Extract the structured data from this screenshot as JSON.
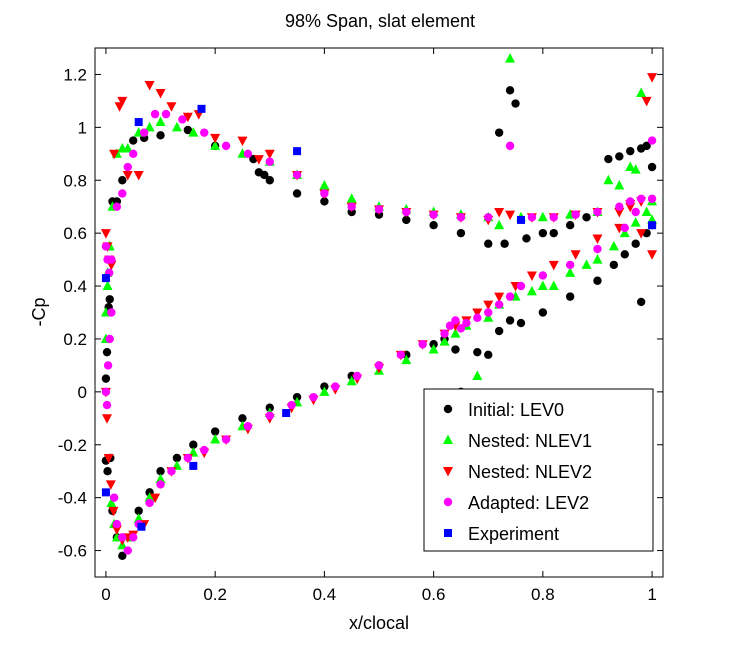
{
  "chart_data": {
    "type": "scatter",
    "title": "98% Span, slat element",
    "xlabel": "x/clocal",
    "ylabel": "-Cp",
    "xlim": [
      -0.02,
      1.02
    ],
    "ylim": [
      -0.7,
      1.3
    ],
    "xticks": [
      0,
      0.2,
      0.4,
      0.6,
      0.8,
      1
    ],
    "xtick_labels": [
      "0",
      "0.2",
      "0.4",
      "0.6",
      "0.8",
      "1"
    ],
    "yticks": [
      -0.6,
      -0.4,
      -0.2,
      0,
      0.2,
      0.4,
      0.6,
      0.8,
      1,
      1.2
    ],
    "ytick_labels": [
      "-0.6",
      "-0.4",
      "-0.2",
      "0",
      "0.2",
      "0.4",
      "0.6",
      "0.8",
      "1",
      "1.2"
    ],
    "grid": false,
    "legend_position": "lower-right",
    "series": [
      {
        "name": "Initial: LEV0",
        "marker": "circle",
        "color": "#000000",
        "x": [
          0.0,
          0.002,
          0.005,
          0.008,
          0.012,
          0.02,
          0.03,
          0.045,
          0.06,
          0.08,
          0.1,
          0.13,
          0.16,
          0.2,
          0.25,
          0.3,
          0.35,
          0.4,
          0.45,
          0.5,
          0.55,
          0.6,
          0.62,
          0.64,
          0.65,
          0.68,
          0.7,
          0.72,
          0.74,
          0.76,
          0.8,
          0.85,
          0.9,
          0.93,
          0.95,
          0.97,
          0.98,
          0.99,
          1.0,
          0.0,
          0.003,
          0.007,
          0.012,
          0.02,
          0.03,
          0.05,
          0.07,
          0.1,
          0.15,
          0.2,
          0.27,
          0.28,
          0.29,
          0.3,
          0.35,
          0.4,
          0.45,
          0.5,
          0.55,
          0.6,
          0.65,
          0.7,
          0.72,
          0.73,
          0.74,
          0.75,
          0.77,
          0.8,
          0.82,
          0.85,
          0.88,
          0.92,
          0.94,
          0.96,
          0.98,
          0.99,
          1.0
        ],
        "y": [
          0.05,
          0.15,
          0.32,
          -0.25,
          -0.45,
          -0.55,
          -0.62,
          -0.55,
          -0.45,
          -0.38,
          -0.3,
          -0.25,
          -0.2,
          -0.15,
          -0.1,
          -0.06,
          -0.02,
          0.02,
          0.06,
          0.1,
          0.14,
          0.18,
          0.2,
          0.16,
          0.0,
          0.15,
          0.14,
          0.23,
          0.27,
          0.26,
          0.3,
          0.36,
          0.42,
          0.48,
          0.52,
          0.56,
          0.34,
          0.6,
          0.63,
          -0.26,
          -0.3,
          0.35,
          0.72,
          0.72,
          0.8,
          0.95,
          0.96,
          0.97,
          0.99,
          0.93,
          0.88,
          0.83,
          0.82,
          0.8,
          0.75,
          0.72,
          0.68,
          0.67,
          0.65,
          0.63,
          0.6,
          0.56,
          0.98,
          0.56,
          1.14,
          1.09,
          0.58,
          0.6,
          0.6,
          0.63,
          0.66,
          0.88,
          0.89,
          0.91,
          0.92,
          0.93,
          0.85
        ]
      },
      {
        "name": "Nested: NLEV1",
        "marker": "triangle-up",
        "color": "#00ff00",
        "x": [
          0.0,
          0.003,
          0.006,
          0.01,
          0.015,
          0.02,
          0.03,
          0.045,
          0.06,
          0.08,
          0.1,
          0.13,
          0.16,
          0.2,
          0.25,
          0.3,
          0.35,
          0.4,
          0.45,
          0.5,
          0.55,
          0.6,
          0.62,
          0.64,
          0.66,
          0.68,
          0.7,
          0.72,
          0.75,
          0.78,
          0.8,
          0.82,
          0.85,
          0.88,
          0.9,
          0.93,
          0.95,
          0.97,
          0.99,
          1.0,
          0.0,
          0.003,
          0.007,
          0.012,
          0.02,
          0.03,
          0.04,
          0.06,
          0.08,
          0.1,
          0.13,
          0.16,
          0.2,
          0.25,
          0.3,
          0.35,
          0.4,
          0.45,
          0.5,
          0.55,
          0.6,
          0.65,
          0.7,
          0.72,
          0.74,
          0.76,
          0.8,
          0.85,
          0.9,
          0.92,
          0.94,
          0.96,
          0.97,
          0.98,
          1.0
        ],
        "y": [
          0.2,
          0.4,
          0.55,
          -0.42,
          -0.5,
          -0.55,
          -0.58,
          -0.55,
          -0.48,
          -0.4,
          -0.33,
          -0.28,
          -0.23,
          -0.18,
          -0.13,
          -0.08,
          -0.04,
          0.0,
          0.04,
          0.08,
          0.12,
          0.16,
          0.19,
          0.22,
          0.25,
          0.06,
          0.28,
          0.33,
          0.36,
          0.38,
          0.4,
          0.4,
          0.45,
          0.48,
          0.5,
          0.55,
          0.6,
          0.64,
          0.68,
          0.72,
          0.3,
          0.45,
          0.55,
          0.7,
          0.9,
          0.92,
          0.92,
          0.98,
          1.0,
          1.02,
          1.0,
          0.98,
          0.93,
          0.9,
          0.87,
          0.82,
          0.78,
          0.73,
          0.7,
          0.69,
          0.68,
          0.67,
          0.66,
          0.63,
          1.26,
          0.66,
          0.66,
          0.67,
          0.68,
          0.8,
          0.78,
          0.85,
          0.84,
          1.13,
          0.65
        ]
      },
      {
        "name": "Nested: NLEV2",
        "marker": "triangle-down",
        "color": "#ff0000",
        "x": [
          0.0,
          0.002,
          0.005,
          0.009,
          0.014,
          0.02,
          0.03,
          0.04,
          0.05,
          0.07,
          0.09,
          0.12,
          0.15,
          0.18,
          0.22,
          0.26,
          0.3,
          0.34,
          0.38,
          0.42,
          0.46,
          0.5,
          0.54,
          0.58,
          0.62,
          0.64,
          0.66,
          0.68,
          0.7,
          0.72,
          0.75,
          0.78,
          0.82,
          0.86,
          0.9,
          0.94,
          0.96,
          0.98,
          1.0,
          0.0,
          0.003,
          0.006,
          0.01,
          0.015,
          0.025,
          0.03,
          0.04,
          0.06,
          0.08,
          0.1,
          0.12,
          0.15,
          0.17,
          0.2,
          0.25,
          0.28,
          0.3,
          0.35,
          0.4,
          0.45,
          0.5,
          0.55,
          0.6,
          0.65,
          0.7,
          0.72,
          0.74,
          0.78,
          0.82,
          0.86,
          0.9,
          0.94,
          0.96,
          0.98,
          0.99,
          1.0
        ],
        "y": [
          0.0,
          -0.1,
          -0.25,
          -0.35,
          -0.45,
          -0.52,
          -0.56,
          -0.55,
          -0.54,
          -0.5,
          -0.4,
          -0.3,
          -0.25,
          -0.23,
          -0.18,
          -0.14,
          -0.1,
          -0.06,
          -0.03,
          0.01,
          0.05,
          0.09,
          0.14,
          0.18,
          0.22,
          0.25,
          0.27,
          0.3,
          0.33,
          0.36,
          0.4,
          0.44,
          0.48,
          0.52,
          0.58,
          0.62,
          0.7,
          0.6,
          0.52,
          0.6,
          0.55,
          0.5,
          0.48,
          0.9,
          1.08,
          1.1,
          0.82,
          0.82,
          1.16,
          1.13,
          1.08,
          1.04,
          1.05,
          0.96,
          0.95,
          0.88,
          0.9,
          0.82,
          0.75,
          0.7,
          0.69,
          0.68,
          0.67,
          0.66,
          0.65,
          0.68,
          0.67,
          0.66,
          0.66,
          0.67,
          0.68,
          0.68,
          0.71,
          0.72,
          1.1,
          1.19
        ]
      },
      {
        "name": "Adapted: LEV2",
        "marker": "circle",
        "color": "#ff00ff",
        "x": [
          0.0,
          0.002,
          0.004,
          0.007,
          0.01,
          0.015,
          0.02,
          0.03,
          0.04,
          0.05,
          0.06,
          0.08,
          0.1,
          0.12,
          0.15,
          0.18,
          0.22,
          0.26,
          0.3,
          0.34,
          0.38,
          0.42,
          0.46,
          0.5,
          0.54,
          0.58,
          0.62,
          0.63,
          0.64,
          0.65,
          0.66,
          0.68,
          0.7,
          0.72,
          0.74,
          0.76,
          0.8,
          0.85,
          0.9,
          0.95,
          0.97,
          1.0,
          0.0,
          0.003,
          0.006,
          0.01,
          0.02,
          0.03,
          0.04,
          0.05,
          0.07,
          0.09,
          0.11,
          0.14,
          0.18,
          0.22,
          0.26,
          0.3,
          0.35,
          0.4,
          0.45,
          0.5,
          0.55,
          0.6,
          0.65,
          0.7,
          0.74,
          0.78,
          0.82,
          0.86,
          0.9,
          0.94,
          0.96,
          0.98,
          1.0
        ],
        "y": [
          0.0,
          -0.05,
          0.1,
          0.2,
          0.3,
          -0.4,
          -0.5,
          -0.55,
          -0.6,
          -0.55,
          -0.5,
          -0.42,
          -0.35,
          -0.3,
          -0.25,
          -0.22,
          -0.18,
          -0.13,
          -0.09,
          -0.05,
          -0.02,
          0.02,
          0.06,
          0.1,
          0.14,
          0.18,
          0.22,
          0.25,
          0.27,
          0.24,
          0.26,
          0.28,
          0.3,
          0.33,
          0.36,
          0.4,
          0.44,
          0.48,
          0.54,
          0.62,
          0.68,
          0.73,
          0.55,
          0.5,
          0.45,
          0.5,
          0.7,
          0.75,
          0.85,
          0.9,
          0.98,
          1.05,
          1.05,
          1.03,
          0.98,
          0.93,
          0.9,
          0.87,
          0.82,
          0.75,
          0.7,
          0.69,
          0.68,
          0.67,
          0.66,
          0.66,
          0.93,
          0.66,
          0.66,
          0.67,
          0.68,
          0.7,
          0.72,
          0.73,
          0.95
        ]
      },
      {
        "name": "Experiment",
        "marker": "square",
        "color": "#0000ff",
        "x": [
          0.0,
          0.0,
          0.06,
          0.065,
          0.16,
          0.175,
          0.33,
          0.35,
          0.76,
          1.0
        ],
        "y": [
          0.43,
          -0.38,
          1.02,
          -0.51,
          -0.28,
          1.07,
          -0.08,
          0.91,
          0.65,
          0.63
        ]
      }
    ]
  }
}
